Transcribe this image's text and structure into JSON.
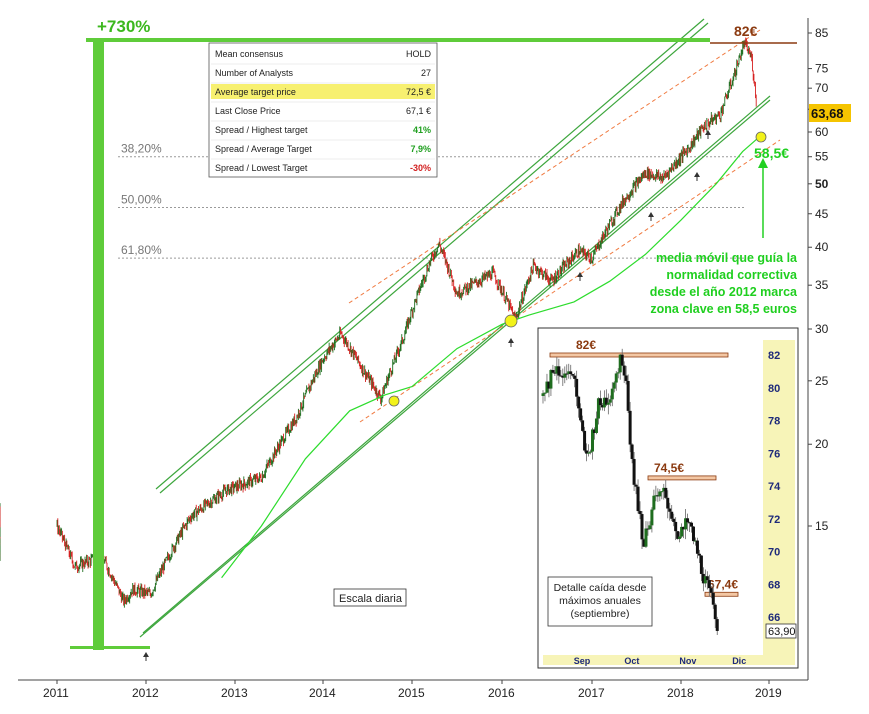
{
  "chart_data": {
    "type": "line",
    "gain_label": "+730%",
    "peak_label": "82€",
    "last_price_label": "63,68",
    "price_axis_ticks": [
      "85",
      "75",
      "70",
      "65",
      "60",
      "55",
      "50",
      "45",
      "40",
      "35",
      "30",
      "25",
      "20",
      "15"
    ],
    "year_ticks": [
      "2011",
      "2012",
      "2013",
      "2014",
      "2015",
      "2016",
      "2017",
      "2018",
      "2019"
    ],
    "fibonacci_levels": [
      {
        "label": "38,20%",
        "price": 55
      },
      {
        "label": "50,00%",
        "price": 46
      },
      {
        "label": "61,80%",
        "price": 38.5
      }
    ],
    "moving_average_label": "58,5€",
    "annotation": [
      "media móvil que guía la",
      "normalidad correctiva",
      "desde el año 2012 marca",
      "zona clave en 58,5 euros"
    ],
    "scale_label": "Escala diaria",
    "consensus_table": [
      {
        "label": "Mean consensus",
        "value": "HOLD"
      },
      {
        "label": "Number of Analysts",
        "value": "27"
      },
      {
        "label": "Average target price",
        "value": "72,5 €"
      },
      {
        "label": "Last Close Price",
        "value": "67,1 €"
      },
      {
        "label": "Spread / Highest target",
        "value": "41%"
      },
      {
        "label": "Spread / Average Target",
        "value": "7,9%"
      },
      {
        "label": "Spread / Lowest Target",
        "value": "-30%"
      }
    ],
    "inset": {
      "levels": [
        {
          "label": "82€",
          "price": 82
        },
        {
          "label": "74,5€",
          "price": 74.5
        },
        {
          "label": "67,4€",
          "price": 67.4
        }
      ],
      "y_ticks": [
        "82",
        "80",
        "78",
        "76",
        "74",
        "72",
        "70",
        "68",
        "66"
      ],
      "x_ticks": [
        "Sep",
        "Oct",
        "Nov",
        "Dic"
      ],
      "last_price_label": "63,90",
      "note": [
        "Detalle caída desde",
        "máximos anuales",
        "(septiembre)"
      ]
    }
  },
  "colors": {
    "channel": "#3da63d",
    "moving_average": "#2ddc2d",
    "bullish_candle": "#1f6d1f",
    "bearish_candle": "#d62020",
    "peak_line": "#8b3a10",
    "last_price_bg": "#f5c400",
    "highlight_row": "#f7f070"
  }
}
